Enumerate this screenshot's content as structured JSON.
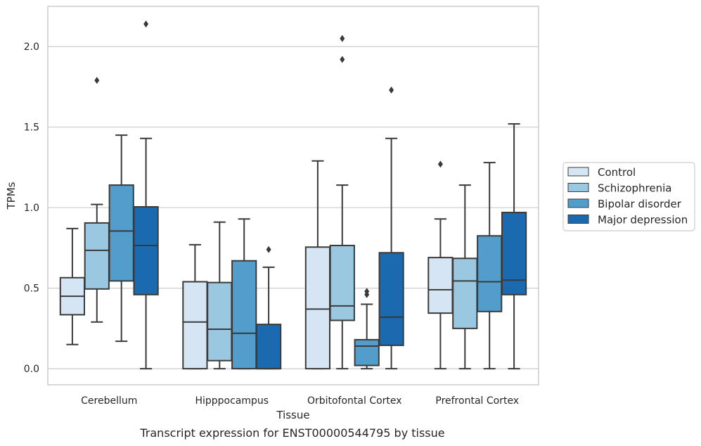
{
  "chart_data": {
    "type": "boxplot",
    "xlabel": "Tissue",
    "ylabel": "TPMs",
    "ylim": [
      -0.1,
      2.25
    ],
    "yticks": [
      0.0,
      0.5,
      1.0,
      1.5,
      2.0
    ],
    "ytick_labels": [
      "0.0",
      "0.5",
      "1.0",
      "1.5",
      "2.0"
    ],
    "grid": true,
    "legend_position": "right",
    "categories": [
      "Cerebellum",
      "Hipppocampus",
      "Orbitofontal Cortex",
      "Prefrontal Cortex"
    ],
    "series": [
      {
        "name": "Control",
        "color": "#d6e5f4",
        "boxes": [
          {
            "whislo": 0.15,
            "q1": 0.335,
            "med": 0.45,
            "q3": 0.565,
            "whishi": 0.87,
            "fliers": []
          },
          {
            "whislo": 0.0,
            "q1": 0.0,
            "med": 0.29,
            "q3": 0.54,
            "whishi": 0.77,
            "fliers": []
          },
          {
            "whislo": 0.0,
            "q1": 0.0,
            "med": 0.37,
            "q3": 0.755,
            "whishi": 1.29,
            "fliers": []
          },
          {
            "whislo": 0.0,
            "q1": 0.345,
            "med": 0.49,
            "q3": 0.69,
            "whishi": 0.93,
            "fliers": [
              1.27
            ]
          }
        ]
      },
      {
        "name": "Schizophrenia",
        "color": "#9ac8e0",
        "boxes": [
          {
            "whislo": 0.29,
            "q1": 0.495,
            "med": 0.735,
            "q3": 0.905,
            "whishi": 1.02,
            "fliers": [
              1.79
            ]
          },
          {
            "whislo": 0.0,
            "q1": 0.05,
            "med": 0.245,
            "q3": 0.535,
            "whishi": 0.91,
            "fliers": []
          },
          {
            "whislo": 0.0,
            "q1": 0.3,
            "med": 0.39,
            "q3": 0.765,
            "whishi": 1.14,
            "fliers": [
              1.92,
              2.05
            ]
          },
          {
            "whislo": 0.0,
            "q1": 0.25,
            "med": 0.545,
            "q3": 0.685,
            "whishi": 1.14,
            "fliers": []
          }
        ]
      },
      {
        "name": "Bipolar disorder",
        "color": "#529dcc",
        "boxes": [
          {
            "whislo": 0.17,
            "q1": 0.545,
            "med": 0.855,
            "q3": 1.14,
            "whishi": 1.45,
            "fliers": []
          },
          {
            "whislo": 0.0,
            "q1": 0.0,
            "med": 0.22,
            "q3": 0.67,
            "whishi": 0.93,
            "fliers": []
          },
          {
            "whislo": 0.0,
            "q1": 0.02,
            "med": 0.14,
            "q3": 0.18,
            "whishi": 0.4,
            "fliers": [
              0.46,
              0.48
            ]
          },
          {
            "whislo": 0.0,
            "q1": 0.355,
            "med": 0.54,
            "q3": 0.825,
            "whishi": 1.28,
            "fliers": []
          }
        ]
      },
      {
        "name": "Major depression",
        "color": "#1b69af",
        "boxes": [
          {
            "whislo": 0.0,
            "q1": 0.46,
            "med": 0.765,
            "q3": 1.005,
            "whishi": 1.43,
            "fliers": [
              2.14
            ]
          },
          {
            "whislo": 0.0,
            "q1": 0.0,
            "med": 0.0,
            "q3": 0.275,
            "whishi": 0.63,
            "fliers": [
              0.74
            ]
          },
          {
            "whislo": 0.0,
            "q1": 0.145,
            "med": 0.32,
            "q3": 0.72,
            "whishi": 1.43,
            "fliers": [
              1.73
            ]
          },
          {
            "whislo": 0.0,
            "q1": 0.46,
            "med": 0.55,
            "q3": 0.97,
            "whishi": 1.52,
            "fliers": []
          }
        ]
      }
    ]
  },
  "caption": "Transcript expression for ENST00000544795 by tissue",
  "colors": {
    "grid": "#cccccc",
    "frame": "#cccccc",
    "edge": "#3a3a3a",
    "text": "#262626"
  }
}
